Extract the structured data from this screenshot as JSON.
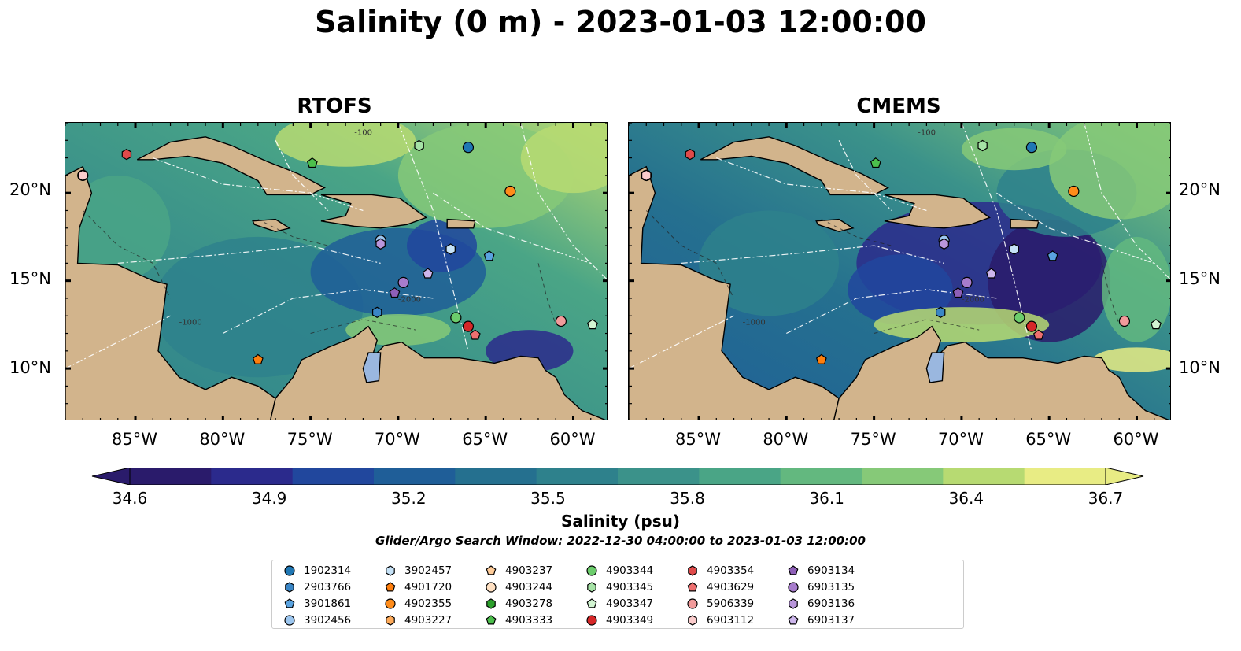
{
  "title": "Salinity (0 m) - 2023-01-03 12:00:00",
  "panels": [
    {
      "title": "RTOFS"
    },
    {
      "title": "CMEMS"
    }
  ],
  "colors": {
    "land": "#d2b48c",
    "salinity_scale": [
      "#2a1b6b",
      "#2b2a8c",
      "#21479d",
      "#1f5e98",
      "#25708f",
      "#2e818c",
      "#3b928a",
      "#4aa586",
      "#63b87f",
      "#86c978",
      "#b7da72",
      "#e8ec84"
    ],
    "lake": "#9ab7df"
  },
  "chart_data": {
    "type": "heatmap",
    "title": "Salinity (0 m) - 2023-01-03 12:00:00",
    "subplots": [
      "RTOFS",
      "CMEMS"
    ],
    "lon_range": [
      -89,
      -58
    ],
    "lat_range": [
      7,
      24
    ],
    "lon_ticks": [
      "85°W",
      "80°W",
      "75°W",
      "70°W",
      "65°W",
      "60°W"
    ],
    "lat_ticks": [
      "20°N",
      "15°N",
      "10°N"
    ],
    "colorbar": {
      "label": "Salinity (psu)",
      "min": 34.6,
      "max": 36.7,
      "ticks": [
        "34.6",
        "34.9",
        "35.2",
        "35.5",
        "35.8",
        "36.1",
        "36.4",
        "36.7"
      ],
      "extend": "both"
    },
    "contour_labels": [
      "-100",
      "-1000",
      "-2000"
    ],
    "search_window": "Glider/Argo Search Window: 2022-12-30 04:00:00 to 2023-01-03 12:00:00",
    "floats": [
      {
        "id": "1902314",
        "marker": "circle",
        "color": "#1f77b4",
        "lon": -66.0,
        "lat": 22.6
      },
      {
        "id": "2903766",
        "marker": "hexagon",
        "color": "#3a86c6",
        "lon": -71.2,
        "lat": 13.2
      },
      {
        "id": "3901861",
        "marker": "pentagon",
        "color": "#5aa3e0",
        "lon": -64.8,
        "lat": 16.4
      },
      {
        "id": "3902456",
        "marker": "circle",
        "color": "#9cc6ef",
        "lon": -71.0,
        "lat": 17.3
      },
      {
        "id": "3902457",
        "marker": "hexagon",
        "color": "#c6e2f7",
        "lon": -67.0,
        "lat": 16.8
      },
      {
        "id": "4901720",
        "marker": "pentagon",
        "color": "#ff7f0e",
        "lon": -78.0,
        "lat": 10.5
      },
      {
        "id": "4902355",
        "marker": "circle",
        "color": "#ff8c1a",
        "lon": -63.6,
        "lat": 20.1
      },
      {
        "id": "4903227",
        "marker": "hexagon",
        "color": "#ffab5a",
        "lon": -88.0,
        "lat": 21.0
      },
      {
        "id": "4903237",
        "marker": "pentagon",
        "color": "#ffcc99",
        "lon": -88.0,
        "lat": 21.0
      },
      {
        "id": "4903244",
        "marker": "circle",
        "color": "#ffe0c2",
        "lon": -88.0,
        "lat": 21.0
      },
      {
        "id": "4903278",
        "marker": "hexagon",
        "color": "#2ca02c",
        "lon": -88.0,
        "lat": 21.0
      },
      {
        "id": "4903333",
        "marker": "pentagon",
        "color": "#4cbf4c",
        "lon": -74.9,
        "lat": 21.7
      },
      {
        "id": "4903344",
        "marker": "circle",
        "color": "#6ccd6c",
        "lon": -66.7,
        "lat": 12.9
      },
      {
        "id": "4903345",
        "marker": "hexagon",
        "color": "#a6e3a6",
        "lon": -68.8,
        "lat": 22.7
      },
      {
        "id": "4903347",
        "marker": "pentagon",
        "color": "#d2f5d2",
        "lon": -58.9,
        "lat": 12.5
      },
      {
        "id": "4903349",
        "marker": "circle",
        "color": "#d62728",
        "lon": -66.0,
        "lat": 12.4
      },
      {
        "id": "4903354",
        "marker": "hexagon",
        "color": "#e04a4a",
        "lon": -85.5,
        "lat": 22.2
      },
      {
        "id": "4903629",
        "marker": "pentagon",
        "color": "#ee7070",
        "lon": -65.6,
        "lat": 11.9
      },
      {
        "id": "5906339",
        "marker": "circle",
        "color": "#f29b9b",
        "lon": -60.7,
        "lat": 12.7
      },
      {
        "id": "6903112",
        "marker": "hexagon",
        "color": "#fbcccc",
        "lon": -88.0,
        "lat": 21.0
      },
      {
        "id": "6903134",
        "marker": "pentagon",
        "color": "#8e5fb8",
        "lon": -70.2,
        "lat": 14.3
      },
      {
        "id": "6903135",
        "marker": "circle",
        "color": "#a77ccc",
        "lon": -69.7,
        "lat": 14.9
      },
      {
        "id": "6903136",
        "marker": "hexagon",
        "color": "#b996db",
        "lon": -71.0,
        "lat": 17.1
      },
      {
        "id": "6903137",
        "marker": "pentagon",
        "color": "#cdb6ec",
        "lon": -68.3,
        "lat": 15.4
      }
    ]
  }
}
